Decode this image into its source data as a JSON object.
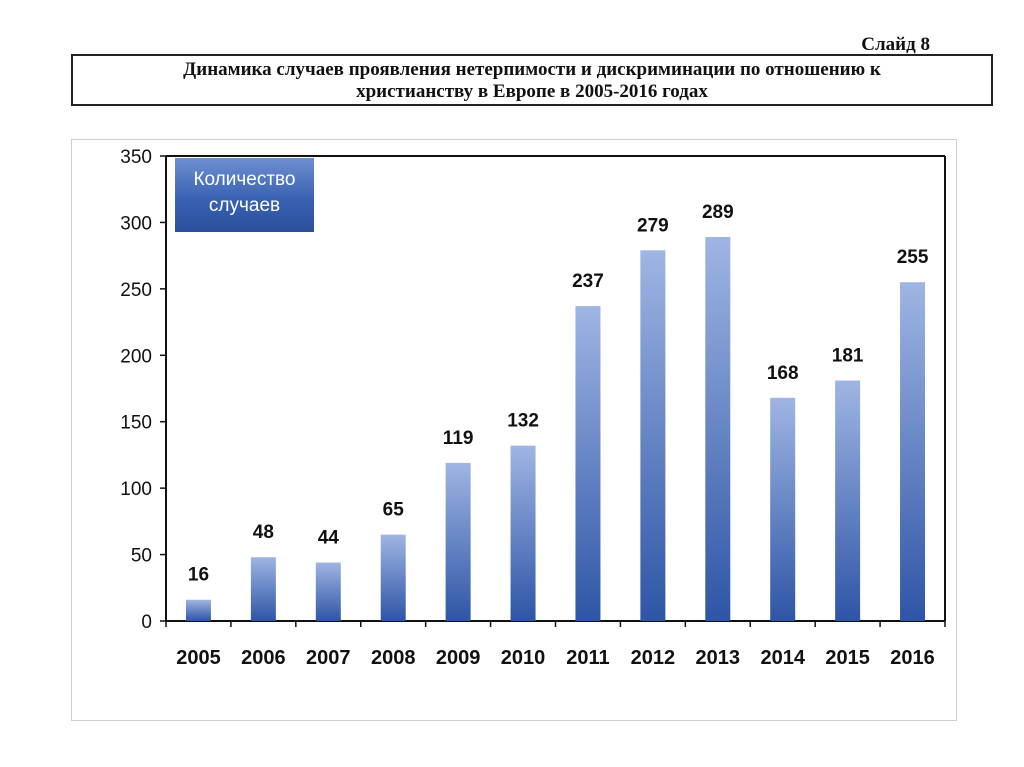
{
  "slide_label": "Слайд 8",
  "title_line1": "Динамика случаев проявления нетерпимости и дискриминации по отношению к",
  "title_line2": "христианству в Европе в 2005-2016 годах",
  "legend": {
    "line1": "Количество",
    "line2": "случаев"
  },
  "colors": {
    "bar_top": "#9fb5e3",
    "bar_bottom": "#2e55a6",
    "legend_top": "#6f8fd0",
    "legend_bottom": "#2a4f9c"
  },
  "chart_data": {
    "type": "bar",
    "title": "Динамика случаев проявления нетерпимости и дискриминации по отношению к христианству в Европе в 2005-2016 годах",
    "categories": [
      "2005",
      "2006",
      "2007",
      "2008",
      "2009",
      "2010",
      "2011",
      "2012",
      "2013",
      "2014",
      "2015",
      "2016"
    ],
    "series": [
      {
        "name": "Количество случаев",
        "values": [
          16,
          48,
          44,
          65,
          119,
          132,
          237,
          279,
          289,
          168,
          181,
          255
        ]
      }
    ],
    "ylim": [
      0,
      350
    ],
    "yticks": [
      0,
      50,
      100,
      150,
      200,
      250,
      300,
      350
    ],
    "ytick_labels": [
      "0",
      "50",
      "100",
      "150",
      "200",
      "250",
      "300",
      "350"
    ],
    "legend_position": "top-left",
    "data_labels": true,
    "grid": false
  }
}
